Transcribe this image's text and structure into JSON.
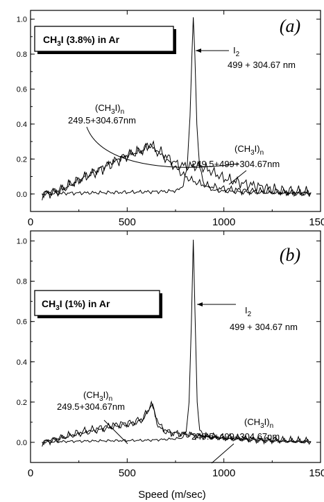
{
  "chart_data": [
    {
      "type": "line",
      "panel_label": "(a)",
      "box_label": {
        "main": "CH",
        "sub": "3",
        "rest": "I (3.8%) in Ar"
      },
      "xlim": [
        0,
        1500
      ],
      "ylim": [
        -0.1,
        1.05
      ],
      "xticks": [
        0,
        500,
        1000,
        1500
      ],
      "yticks": [
        0.0,
        0.2,
        0.4,
        0.6,
        0.8,
        1.0
      ],
      "annotations": [
        {
          "id": "i2",
          "line1_main": "I",
          "line1_sub": "2",
          "line1_rest": "",
          "line2": "499 + 304.67 nm"
        },
        {
          "id": "cluster_low",
          "line1_main": "(CH",
          "line1_sub": "3",
          "line1_rest": "I)",
          "line1_sub2": "n",
          "line2": "249.5+304.67nm"
        },
        {
          "id": "cluster_high",
          "line1_main": "(CH",
          "line1_sub": "3",
          "line1_rest": "I)",
          "line1_sub2": "n",
          "line2": "249.5+499+304.67nm"
        }
      ],
      "series": [
        {
          "role": "I2 499+304.67 nm",
          "points": [
            [
              60,
              0.0
            ],
            [
              200,
              0.005
            ],
            [
              400,
              0.008
            ],
            [
              600,
              0.012
            ],
            [
              700,
              0.015
            ],
            [
              760,
              0.02
            ],
            [
              790,
              0.05
            ],
            [
              810,
              0.15
            ],
            [
              825,
              0.45
            ],
            [
              835,
              0.8
            ],
            [
              842,
              1.0
            ],
            [
              850,
              0.8
            ],
            [
              860,
              0.4
            ],
            [
              875,
              0.15
            ],
            [
              900,
              0.05
            ],
            [
              950,
              0.02
            ],
            [
              1100,
              0.01
            ],
            [
              1300,
              0.005
            ],
            [
              1450,
              0.0
            ]
          ]
        },
        {
          "role": "(CH3I)n 249.5+304.67nm",
          "points": [
            [
              60,
              0.0
            ],
            [
              150,
              0.02
            ],
            [
              250,
              0.08
            ],
            [
              350,
              0.14
            ],
            [
              450,
              0.2
            ],
            [
              520,
              0.23
            ],
            [
              580,
              0.25
            ],
            [
              620,
              0.29
            ],
            [
              640,
              0.25
            ],
            [
              680,
              0.22
            ],
            [
              720,
              0.18
            ],
            [
              760,
              0.14
            ],
            [
              800,
              0.1
            ],
            [
              850,
              0.07
            ],
            [
              900,
              0.05
            ],
            [
              1000,
              0.03
            ],
            [
              1100,
              0.02
            ],
            [
              1300,
              0.01
            ],
            [
              1450,
              0.005
            ]
          ]
        },
        {
          "role": "(CH3I)n 249.5+499+304.67nm",
          "points": [
            [
              60,
              0.0
            ],
            [
              150,
              0.02
            ],
            [
              250,
              0.08
            ],
            [
              350,
              0.13
            ],
            [
              450,
              0.19
            ],
            [
              520,
              0.23
            ],
            [
              580,
              0.25
            ],
            [
              620,
              0.28
            ],
            [
              660,
              0.25
            ],
            [
              720,
              0.2
            ],
            [
              760,
              0.17
            ],
            [
              800,
              0.16
            ],
            [
              850,
              0.16
            ],
            [
              900,
              0.15
            ],
            [
              950,
              0.12
            ],
            [
              1000,
              0.09
            ],
            [
              1100,
              0.06
            ],
            [
              1200,
              0.04
            ],
            [
              1300,
              0.02
            ],
            [
              1450,
              0.01
            ]
          ]
        }
      ]
    },
    {
      "type": "line",
      "panel_label": "(b)",
      "box_label": {
        "main": "CH",
        "sub": "3",
        "rest": "I (1%) in Ar"
      },
      "xlim": [
        0,
        1500
      ],
      "ylim": [
        -0.1,
        1.05
      ],
      "xticks": [
        0,
        500,
        1000,
        1500
      ],
      "yticks": [
        0.0,
        0.2,
        0.4,
        0.6,
        0.8,
        1.0
      ],
      "xlabel": "Speed (m/sec)",
      "annotations": [
        {
          "id": "i2",
          "line1_main": "I",
          "line1_sub": "2",
          "line1_rest": "",
          "line2": "499 + 304.67 nm"
        },
        {
          "id": "cluster_low",
          "line1_main": "(CH",
          "line1_sub": "3",
          "line1_rest": "I)",
          "line1_sub2": "n",
          "line2": "249.5+304.67nm"
        },
        {
          "id": "cluster_high",
          "line1_main": "(CH",
          "line1_sub": "3",
          "line1_rest": "I)",
          "line1_sub2": "n",
          "line2": "249.5+499+304.67nm"
        }
      ],
      "series": [
        {
          "role": "I2 499+304.67 nm",
          "points": [
            [
              60,
              0.0
            ],
            [
              200,
              0.005
            ],
            [
              400,
              0.008
            ],
            [
              600,
              0.01
            ],
            [
              700,
              0.015
            ],
            [
              780,
              0.02
            ],
            [
              805,
              0.05
            ],
            [
              820,
              0.2
            ],
            [
              832,
              0.6
            ],
            [
              842,
              1.0
            ],
            [
              852,
              0.6
            ],
            [
              862,
              0.2
            ],
            [
              875,
              0.06
            ],
            [
              900,
              0.03
            ],
            [
              1000,
              0.02
            ],
            [
              1200,
              0.01
            ],
            [
              1450,
              0.0
            ]
          ]
        },
        {
          "role": "(CH3I)n 249.5+304.67nm",
          "points": [
            [
              60,
              0.0
            ],
            [
              150,
              0.02
            ],
            [
              250,
              0.04
            ],
            [
              350,
              0.06
            ],
            [
              450,
              0.08
            ],
            [
              530,
              0.09
            ],
            [
              580,
              0.11
            ],
            [
              605,
              0.15
            ],
            [
              625,
              0.2
            ],
            [
              640,
              0.15
            ],
            [
              660,
              0.08
            ],
            [
              700,
              0.05
            ],
            [
              800,
              0.04
            ],
            [
              900,
              0.03
            ],
            [
              1000,
              0.02
            ],
            [
              1200,
              0.01
            ],
            [
              1450,
              0.005
            ]
          ]
        },
        {
          "role": "(CH3I)n 249.5+499+304.67nm",
          "points": [
            [
              60,
              0.0
            ],
            [
              150,
              0.02
            ],
            [
              250,
              0.05
            ],
            [
              350,
              0.07
            ],
            [
              450,
              0.09
            ],
            [
              530,
              0.1
            ],
            [
              580,
              0.12
            ],
            [
              610,
              0.16
            ],
            [
              625,
              0.19
            ],
            [
              645,
              0.14
            ],
            [
              670,
              0.08
            ],
            [
              720,
              0.05
            ],
            [
              800,
              0.04
            ],
            [
              900,
              0.03
            ],
            [
              1000,
              0.025
            ],
            [
              1200,
              0.015
            ],
            [
              1450,
              0.005
            ]
          ]
        }
      ]
    }
  ]
}
